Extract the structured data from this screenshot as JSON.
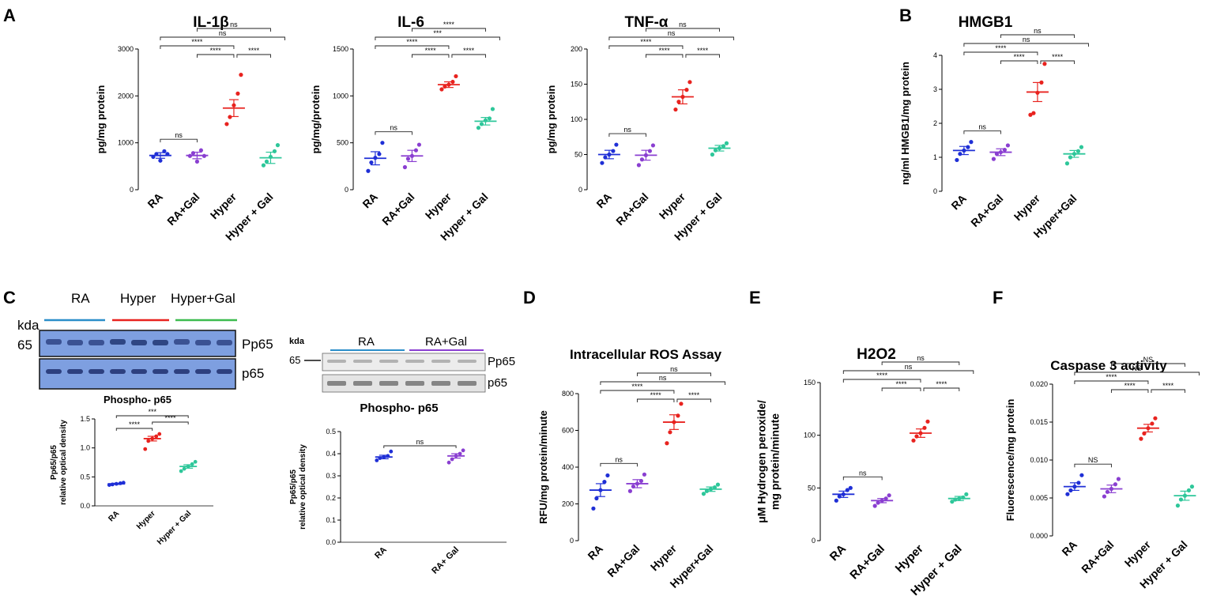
{
  "panel_letters": {
    "A": "A",
    "B": "B",
    "C": "C",
    "D": "D",
    "E": "E",
    "F": "F"
  },
  "colors": {
    "RA": "#1f2fd6",
    "RA_Gal": "#8a3fd1",
    "Hyper": "#e8231f",
    "Hyper_Gal": "#2ec79a",
    "western_blot_bg": "#7e9fe0",
    "ra_blue": "#2b8ec9",
    "hyper_red": "#e8231f",
    "gal_green": "#3dbb4f",
    "ragal_purple": "#8a3fd1"
  },
  "western_blot": {
    "left": {
      "header_labels": [
        "RA",
        "Hyper",
        "Hyper+Gal"
      ],
      "kda_label": "kda",
      "marker": "65",
      "bands": [
        "Pp65",
        "p65"
      ],
      "caption": "Phospho- p65"
    },
    "right": {
      "header_labels": [
        "RA",
        "RA+Gal"
      ],
      "kda_label": "kda",
      "marker": "65",
      "bands": [
        "Pp65",
        "p65"
      ],
      "caption": "Phospho- p65"
    }
  },
  "chart_data": [
    {
      "id": "il1b",
      "panel": "A",
      "type": "scatter",
      "title": "IL-1β",
      "ylabel": "pg/mg protein",
      "ylim": [
        0,
        3000
      ],
      "yticks": [
        "0",
        "1000",
        "2000",
        "3000"
      ],
      "categories": [
        "RA",
        "RA+Gal",
        "Hyper",
        "Hyper + Gal"
      ],
      "means": [
        730,
        730,
        1740,
        680
      ],
      "sem": [
        60,
        70,
        180,
        120
      ],
      "points": [
        [
          700,
          760,
          620,
          820,
          760
        ],
        [
          720,
          780,
          600,
          840,
          720
        ],
        [
          1400,
          1550,
          1800,
          2050,
          2450
        ],
        [
          520,
          600,
          700,
          820,
          950
        ]
      ],
      "comparisons": [
        {
          "a": 0,
          "b": 1,
          "label": "ns"
        },
        {
          "a": 0,
          "b": 2,
          "label": "****"
        },
        {
          "a": 1,
          "b": 2,
          "label": "****"
        },
        {
          "a": 2,
          "b": 3,
          "label": "****"
        },
        {
          "a": 0,
          "b": 3,
          "label": "ns"
        },
        {
          "a": 1,
          "b": 3,
          "label": "ns"
        }
      ]
    },
    {
      "id": "il6",
      "panel": "A",
      "type": "scatter",
      "title": "IL-6",
      "ylabel": "pg/mg/protein",
      "ylim": [
        0,
        1500
      ],
      "yticks": [
        "0",
        "500",
        "1000",
        "1500"
      ],
      "categories": [
        "RA",
        "RA+Gal",
        "Hyper",
        "Hyper + Gal"
      ],
      "means": [
        335,
        360,
        1120,
        730
      ],
      "sem": [
        70,
        60,
        30,
        40
      ],
      "points": [
        [
          200,
          290,
          340,
          380,
          500
        ],
        [
          240,
          330,
          360,
          420,
          480
        ],
        [
          1070,
          1100,
          1120,
          1150,
          1210
        ],
        [
          660,
          700,
          740,
          760,
          860
        ]
      ],
      "comparisons": [
        {
          "a": 0,
          "b": 1,
          "label": "ns"
        },
        {
          "a": 0,
          "b": 2,
          "label": "****"
        },
        {
          "a": 1,
          "b": 2,
          "label": "****"
        },
        {
          "a": 2,
          "b": 3,
          "label": "****"
        },
        {
          "a": 0,
          "b": 3,
          "label": "***"
        },
        {
          "a": 1,
          "b": 3,
          "label": "****"
        }
      ]
    },
    {
      "id": "tnfa",
      "panel": "A",
      "type": "scatter",
      "title": "TNF-α",
      "ylabel": "pg/mg protein",
      "ylim": [
        0,
        200
      ],
      "yticks": [
        "0",
        "50",
        "100",
        "150",
        "200"
      ],
      "categories": [
        "RA",
        "RA+Gal",
        "Hyper",
        "Hyper + Gal"
      ],
      "means": [
        50,
        49,
        132,
        59
      ],
      "sem": [
        6,
        7,
        10,
        4
      ],
      "points": [
        [
          38,
          46,
          50,
          55,
          64
        ],
        [
          35,
          43,
          49,
          55,
          63
        ],
        [
          114,
          125,
          132,
          142,
          153
        ],
        [
          50,
          56,
          59,
          62,
          66
        ]
      ],
      "comparisons": [
        {
          "a": 0,
          "b": 1,
          "label": "ns"
        },
        {
          "a": 0,
          "b": 2,
          "label": "****"
        },
        {
          "a": 1,
          "b": 2,
          "label": "****"
        },
        {
          "a": 2,
          "b": 3,
          "label": "****"
        },
        {
          "a": 0,
          "b": 3,
          "label": "ns"
        },
        {
          "a": 1,
          "b": 3,
          "label": "ns"
        }
      ]
    },
    {
      "id": "hmgb1",
      "panel": "B",
      "type": "scatter",
      "title": "HMGB1",
      "ylabel": "ng/ml HMGB1/mg protein",
      "ylim": [
        0,
        4
      ],
      "yticks": [
        "0",
        "1",
        "2",
        "3",
        "4"
      ],
      "categories": [
        "RA",
        "RA+Gal",
        "Hyper",
        "Hyper+Gal"
      ],
      "means": [
        1.2,
        1.15,
        2.92,
        1.1
      ],
      "sem": [
        0.12,
        0.1,
        0.28,
        0.1
      ],
      "points": [
        [
          0.92,
          1.1,
          1.2,
          1.3,
          1.45
        ],
        [
          0.95,
          1.1,
          1.15,
          1.22,
          1.35
        ],
        [
          2.25,
          2.3,
          2.9,
          3.2,
          3.75
        ],
        [
          0.82,
          1.0,
          1.1,
          1.18,
          1.3
        ]
      ],
      "comparisons": [
        {
          "a": 0,
          "b": 1,
          "label": "ns"
        },
        {
          "a": 0,
          "b": 2,
          "label": "****"
        },
        {
          "a": 1,
          "b": 2,
          "label": "****"
        },
        {
          "a": 2,
          "b": 3,
          "label": "****"
        },
        {
          "a": 0,
          "b": 3,
          "label": "ns"
        },
        {
          "a": 1,
          "b": 3,
          "label": "ns"
        }
      ]
    },
    {
      "id": "pp65_left",
      "panel": "C",
      "type": "scatter",
      "title": "",
      "ylabel": "Pp65/p65 relative optical density",
      "ylim": [
        0,
        1.5
      ],
      "yticks": [
        "0.0",
        "0.5",
        "1.0",
        "1.5"
      ],
      "categories": [
        "RA",
        "Hyper",
        "Hyper + Gal"
      ],
      "means": [
        0.38,
        1.16,
        0.68
      ],
      "sem": [
        0.01,
        0.04,
        0.03
      ],
      "points": [
        [
          0.36,
          0.37,
          0.38,
          0.39,
          0.4
        ],
        [
          0.98,
          1.12,
          1.16,
          1.2,
          1.24
        ],
        [
          0.6,
          0.64,
          0.68,
          0.72,
          0.76
        ]
      ],
      "comparisons": [
        {
          "a": 0,
          "b": 1,
          "label": "****"
        },
        {
          "a": 1,
          "b": 2,
          "label": "****"
        },
        {
          "a": 0,
          "b": 2,
          "label": "***"
        }
      ]
    },
    {
      "id": "pp65_right",
      "panel": "C",
      "type": "scatter",
      "title": "",
      "ylabel": "Pp65/p65 relative optical density",
      "ylim": [
        0,
        0.5
      ],
      "yticks": [
        "0.0",
        "0.1",
        "0.2",
        "0.3",
        "0.4",
        "0.5"
      ],
      "categories": [
        "RA",
        "RA+ Gal"
      ],
      "means": [
        0.385,
        0.39
      ],
      "sem": [
        0.008,
        0.01
      ],
      "points": [
        [
          0.37,
          0.38,
          0.385,
          0.39,
          0.41
        ],
        [
          0.36,
          0.375,
          0.39,
          0.4,
          0.415
        ]
      ],
      "comparisons": [
        {
          "a": 0,
          "b": 1,
          "label": "ns"
        }
      ]
    },
    {
      "id": "ros",
      "panel": "D",
      "type": "scatter",
      "title": "Intracellular ROS Assay",
      "ylabel": "RFU/mg protein/minute",
      "ylim": [
        0,
        800
      ],
      "yticks": [
        "0",
        "200",
        "400",
        "600",
        "800"
      ],
      "categories": [
        "RA",
        "RA+Gal",
        "Hyper",
        "Hyper+Gal"
      ],
      "means": [
        275,
        310,
        645,
        280
      ],
      "sem": [
        35,
        22,
        40,
        12
      ],
      "points": [
        [
          175,
          230,
          275,
          320,
          355
        ],
        [
          270,
          295,
          310,
          325,
          360
        ],
        [
          530,
          590,
          645,
          680,
          745
        ],
        [
          255,
          270,
          280,
          290,
          305
        ]
      ],
      "comparisons": [
        {
          "a": 0,
          "b": 1,
          "label": "ns"
        },
        {
          "a": 0,
          "b": 2,
          "label": "****"
        },
        {
          "a": 1,
          "b": 2,
          "label": "****"
        },
        {
          "a": 2,
          "b": 3,
          "label": "****"
        },
        {
          "a": 0,
          "b": 3,
          "label": "ns"
        },
        {
          "a": 1,
          "b": 3,
          "label": "ns"
        }
      ]
    },
    {
      "id": "h2o2",
      "panel": "E",
      "type": "scatter",
      "title": "H2O2",
      "ylabel": "μM Hydrogen peroxide/ mg protein/minute",
      "ylim": [
        0,
        150
      ],
      "yticks": [
        "0",
        "50",
        "100",
        "150"
      ],
      "categories": [
        "RA",
        "RA+Gal",
        "Hyper",
        "Hyper + Gal"
      ],
      "means": [
        44,
        38,
        102,
        40
      ],
      "sem": [
        3,
        2,
        4,
        2
      ],
      "points": [
        [
          38,
          42,
          44,
          48,
          50
        ],
        [
          33,
          36,
          38,
          40,
          43
        ],
        [
          95,
          99,
          102,
          107,
          113
        ],
        [
          37,
          39,
          40,
          41,
          44
        ]
      ],
      "comparisons": [
        {
          "a": 0,
          "b": 1,
          "label": "ns"
        },
        {
          "a": 0,
          "b": 2,
          "label": "****"
        },
        {
          "a": 1,
          "b": 2,
          "label": "****"
        },
        {
          "a": 2,
          "b": 3,
          "label": "****"
        },
        {
          "a": 0,
          "b": 3,
          "label": "ns"
        },
        {
          "a": 1,
          "b": 3,
          "label": "ns"
        }
      ]
    },
    {
      "id": "casp3",
      "panel": "F",
      "type": "scatter",
      "title": "Caspase 3 activity",
      "ylabel": "Fluorescence/mg protein",
      "ylim": [
        0,
        0.02
      ],
      "yticks": [
        "0.000",
        "0.005",
        "0.010",
        "0.015",
        "0.020"
      ],
      "categories": [
        "RA",
        "RA+Gal",
        "Hyper",
        "Hyper + Gal"
      ],
      "means": [
        0.0065,
        0.0062,
        0.0142,
        0.0053
      ],
      "sem": [
        0.0005,
        0.0005,
        0.0005,
        0.0006
      ],
      "points": [
        [
          0.0055,
          0.006,
          0.0065,
          0.007,
          0.008
        ],
        [
          0.0052,
          0.0058,
          0.0062,
          0.0068,
          0.0075
        ],
        [
          0.0128,
          0.0135,
          0.0142,
          0.0148,
          0.0155
        ],
        [
          0.004,
          0.0048,
          0.0053,
          0.006,
          0.0065
        ]
      ],
      "comparisons": [
        {
          "a": 0,
          "b": 1,
          "label": "NS"
        },
        {
          "a": 0,
          "b": 2,
          "label": "****"
        },
        {
          "a": 1,
          "b": 2,
          "label": "****"
        },
        {
          "a": 2,
          "b": 3,
          "label": "****"
        },
        {
          "a": 0,
          "b": 3,
          "label": "NS"
        },
        {
          "a": 1,
          "b": 3,
          "label": "NS"
        }
      ]
    }
  ]
}
